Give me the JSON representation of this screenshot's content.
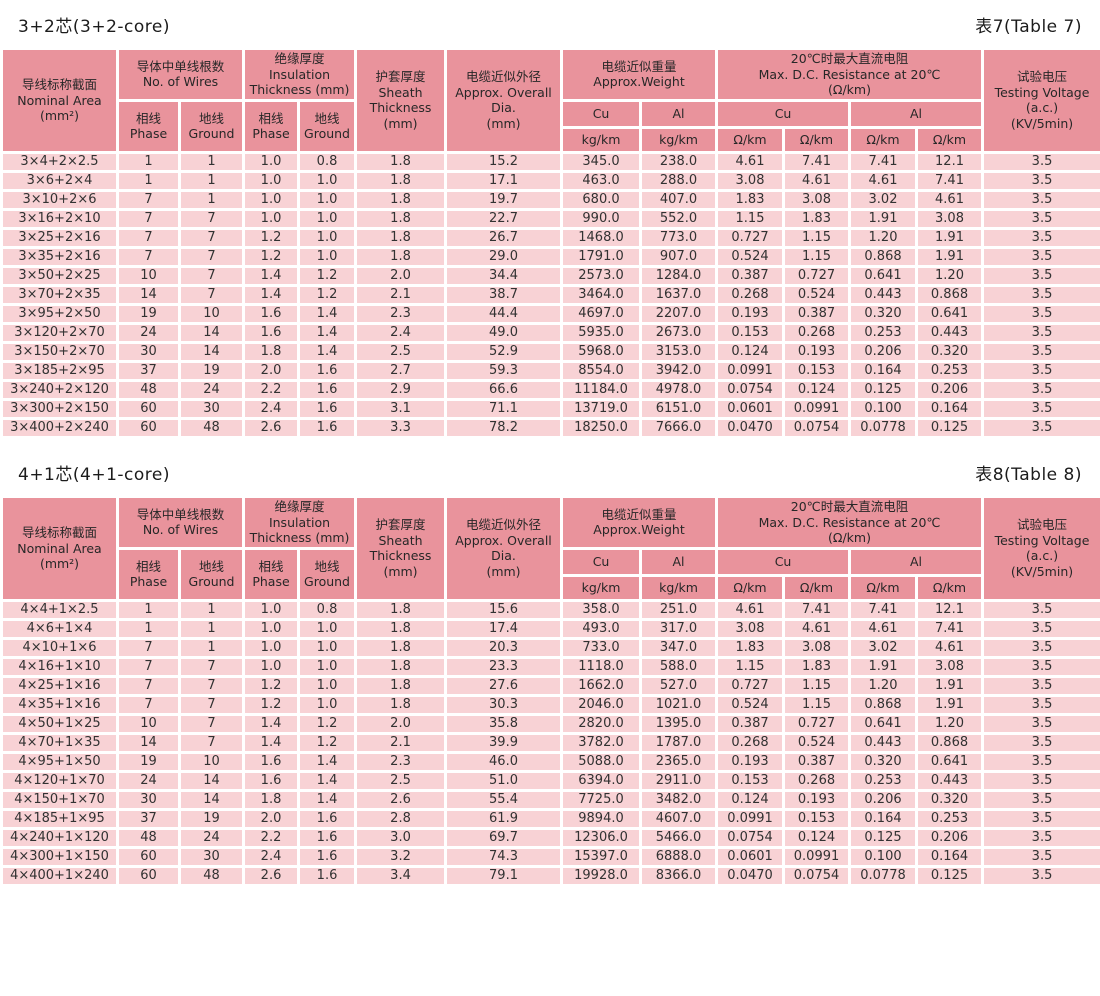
{
  "header": {
    "nominal_area": [
      "导线标称截面",
      "Nominal Area",
      "(mm²)"
    ],
    "wires_group": [
      "导体中单线根数",
      "No. of Wires"
    ],
    "insulation_group": [
      "绝缘厚度",
      "Insulation",
      "Thickness (mm)"
    ],
    "sheath": [
      "护套厚度",
      "Sheath",
      "Thickness",
      "(mm)"
    ],
    "overall_dia": [
      "电缆近似外径",
      "Approx. Overall Dia.",
      "(mm)"
    ],
    "weight_group": [
      "电缆近似重量",
      "Approx.Weight"
    ],
    "resistance_group": [
      "20℃时最大直流电阻",
      "Max. D.C. Resistance at 20℃",
      "(Ω/km)"
    ],
    "testing_voltage": [
      "试验电压",
      "Testing Voltage",
      "(a.c.)",
      "(KV/5min)"
    ],
    "phase": [
      "相线",
      "Phase"
    ],
    "ground": [
      "地线",
      "Ground"
    ],
    "cu": "Cu",
    "al": "Al",
    "kg_km": "kg/km",
    "ohm_km": "Ω/km"
  },
  "colors": {
    "header_bg": "#e9939c",
    "row_bg": "#f8d2d5",
    "grid": "#ffffff",
    "text": "#323232"
  },
  "tables": [
    {
      "title": "3+2芯(3+2-core)",
      "label": "表7(Table 7)",
      "rows": [
        [
          "3×4+2×2.5",
          "1",
          "1",
          "1.0",
          "0.8",
          "1.8",
          "15.2",
          "345.0",
          "238.0",
          "4.61",
          "7.41",
          "7.41",
          "12.1",
          "3.5"
        ],
        [
          "3×6+2×4",
          "1",
          "1",
          "1.0",
          "1.0",
          "1.8",
          "17.1",
          "463.0",
          "288.0",
          "3.08",
          "4.61",
          "4.61",
          "7.41",
          "3.5"
        ],
        [
          "3×10+2×6",
          "7",
          "1",
          "1.0",
          "1.0",
          "1.8",
          "19.7",
          "680.0",
          "407.0",
          "1.83",
          "3.08",
          "3.02",
          "4.61",
          "3.5"
        ],
        [
          "3×16+2×10",
          "7",
          "7",
          "1.0",
          "1.0",
          "1.8",
          "22.7",
          "990.0",
          "552.0",
          "1.15",
          "1.83",
          "1.91",
          "3.08",
          "3.5"
        ],
        [
          "3×25+2×16",
          "7",
          "7",
          "1.2",
          "1.0",
          "1.8",
          "26.7",
          "1468.0",
          "773.0",
          "0.727",
          "1.15",
          "1.20",
          "1.91",
          "3.5"
        ],
        [
          "3×35+2×16",
          "7",
          "7",
          "1.2",
          "1.0",
          "1.8",
          "29.0",
          "1791.0",
          "907.0",
          "0.524",
          "1.15",
          "0.868",
          "1.91",
          "3.5"
        ],
        [
          "3×50+2×25",
          "10",
          "7",
          "1.4",
          "1.2",
          "2.0",
          "34.4",
          "2573.0",
          "1284.0",
          "0.387",
          "0.727",
          "0.641",
          "1.20",
          "3.5"
        ],
        [
          "3×70+2×35",
          "14",
          "7",
          "1.4",
          "1.2",
          "2.1",
          "38.7",
          "3464.0",
          "1637.0",
          "0.268",
          "0.524",
          "0.443",
          "0.868",
          "3.5"
        ],
        [
          "3×95+2×50",
          "19",
          "10",
          "1.6",
          "1.4",
          "2.3",
          "44.4",
          "4697.0",
          "2207.0",
          "0.193",
          "0.387",
          "0.320",
          "0.641",
          "3.5"
        ],
        [
          "3×120+2×70",
          "24",
          "14",
          "1.6",
          "1.4",
          "2.4",
          "49.0",
          "5935.0",
          "2673.0",
          "0.153",
          "0.268",
          "0.253",
          "0.443",
          "3.5"
        ],
        [
          "3×150+2×70",
          "30",
          "14",
          "1.8",
          "1.4",
          "2.5",
          "52.9",
          "5968.0",
          "3153.0",
          "0.124",
          "0.193",
          "0.206",
          "0.320",
          "3.5"
        ],
        [
          "3×185+2×95",
          "37",
          "19",
          "2.0",
          "1.6",
          "2.7",
          "59.3",
          "8554.0",
          "3942.0",
          "0.0991",
          "0.153",
          "0.164",
          "0.253",
          "3.5"
        ],
        [
          "3×240+2×120",
          "48",
          "24",
          "2.2",
          "1.6",
          "2.9",
          "66.6",
          "11184.0",
          "4978.0",
          "0.0754",
          "0.124",
          "0.125",
          "0.206",
          "3.5"
        ],
        [
          "3×300+2×150",
          "60",
          "30",
          "2.4",
          "1.6",
          "3.1",
          "71.1",
          "13719.0",
          "6151.0",
          "0.0601",
          "0.0991",
          "0.100",
          "0.164",
          "3.5"
        ],
        [
          "3×400+2×240",
          "60",
          "48",
          "2.6",
          "1.6",
          "3.3",
          "78.2",
          "18250.0",
          "7666.0",
          "0.0470",
          "0.0754",
          "0.0778",
          "0.125",
          "3.5"
        ]
      ]
    },
    {
      "title": "4+1芯(4+1-core)",
      "label": "表8(Table 8)",
      "rows": [
        [
          "4×4+1×2.5",
          "1",
          "1",
          "1.0",
          "0.8",
          "1.8",
          "15.6",
          "358.0",
          "251.0",
          "4.61",
          "7.41",
          "7.41",
          "12.1",
          "3.5"
        ],
        [
          "4×6+1×4",
          "1",
          "1",
          "1.0",
          "1.0",
          "1.8",
          "17.4",
          "493.0",
          "317.0",
          "3.08",
          "4.61",
          "4.61",
          "7.41",
          "3.5"
        ],
        [
          "4×10+1×6",
          "7",
          "1",
          "1.0",
          "1.0",
          "1.8",
          "20.3",
          "733.0",
          "347.0",
          "1.83",
          "3.08",
          "3.02",
          "4.61",
          "3.5"
        ],
        [
          "4×16+1×10",
          "7",
          "7",
          "1.0",
          "1.0",
          "1.8",
          "23.3",
          "1118.0",
          "588.0",
          "1.15",
          "1.83",
          "1.91",
          "3.08",
          "3.5"
        ],
        [
          "4×25+1×16",
          "7",
          "7",
          "1.2",
          "1.0",
          "1.8",
          "27.6",
          "1662.0",
          "527.0",
          "0.727",
          "1.15",
          "1.20",
          "1.91",
          "3.5"
        ],
        [
          "4×35+1×16",
          "7",
          "7",
          "1.2",
          "1.0",
          "1.8",
          "30.3",
          "2046.0",
          "1021.0",
          "0.524",
          "1.15",
          "0.868",
          "1.91",
          "3.5"
        ],
        [
          "4×50+1×25",
          "10",
          "7",
          "1.4",
          "1.2",
          "2.0",
          "35.8",
          "2820.0",
          "1395.0",
          "0.387",
          "0.727",
          "0.641",
          "1.20",
          "3.5"
        ],
        [
          "4×70+1×35",
          "14",
          "7",
          "1.4",
          "1.2",
          "2.1",
          "39.9",
          "3782.0",
          "1787.0",
          "0.268",
          "0.524",
          "0.443",
          "0.868",
          "3.5"
        ],
        [
          "4×95+1×50",
          "19",
          "10",
          "1.6",
          "1.4",
          "2.3",
          "46.0",
          "5088.0",
          "2365.0",
          "0.193",
          "0.387",
          "0.320",
          "0.641",
          "3.5"
        ],
        [
          "4×120+1×70",
          "24",
          "14",
          "1.6",
          "1.4",
          "2.5",
          "51.0",
          "6394.0",
          "2911.0",
          "0.153",
          "0.268",
          "0.253",
          "0.443",
          "3.5"
        ],
        [
          "4×150+1×70",
          "30",
          "14",
          "1.8",
          "1.4",
          "2.6",
          "55.4",
          "7725.0",
          "3482.0",
          "0.124",
          "0.193",
          "0.206",
          "0.320",
          "3.5"
        ],
        [
          "4×185+1×95",
          "37",
          "19",
          "2.0",
          "1.6",
          "2.8",
          "61.9",
          "9894.0",
          "4607.0",
          "0.0991",
          "0.153",
          "0.164",
          "0.253",
          "3.5"
        ],
        [
          "4×240+1×120",
          "48",
          "24",
          "2.2",
          "1.6",
          "3.0",
          "69.7",
          "12306.0",
          "5466.0",
          "0.0754",
          "0.124",
          "0.125",
          "0.206",
          "3.5"
        ],
        [
          "4×300+1×150",
          "60",
          "30",
          "2.4",
          "1.6",
          "3.2",
          "74.3",
          "15397.0",
          "6888.0",
          "0.0601",
          "0.0991",
          "0.100",
          "0.164",
          "3.5"
        ],
        [
          "4×400+1×240",
          "60",
          "48",
          "2.6",
          "1.6",
          "3.4",
          "79.1",
          "19928.0",
          "8366.0",
          "0.0470",
          "0.0754",
          "0.0778",
          "0.125",
          "3.5"
        ]
      ]
    }
  ]
}
